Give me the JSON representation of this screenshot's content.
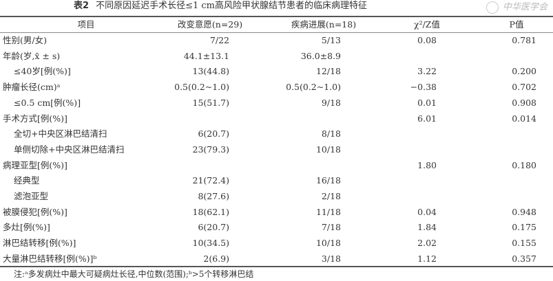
{
  "title": {
    "label": "表2",
    "text": "不同原因延迟手术长径≤1 cm高风险甲状腺结节患者的临床病理特征"
  },
  "headers": [
    "项目",
    "改变意愿(n=29)",
    "疾病进展(n=18)",
    "χ²/Z值",
    "P值"
  ],
  "watermark": "中华医学会",
  "rows": [
    {
      "label": "性别(男/女)",
      "sub": false,
      "v": [
        "7/22",
        "5/13",
        "0.08",
        "0.781"
      ]
    },
    {
      "label": "年龄(岁,x̄ ± s)",
      "sub": false,
      "v": [
        "44.1±13.1",
        "36.0±8.9",
        "",
        ""
      ]
    },
    {
      "label": "≤40岁[例(%)]",
      "sub": true,
      "v": [
        "13(44.8)",
        "12/18",
        "3.22",
        "0.200"
      ]
    },
    {
      "label": "肿瘤长径(cm)ᵃ",
      "sub": false,
      "v": [
        "0.5(0.2~1.0)",
        "0.5(0.2~1.0)",
        "−0.38",
        "0.702"
      ]
    },
    {
      "label": "≤0.5 cm[例(%)]",
      "sub": true,
      "v": [
        "15(51.7)",
        "9/18",
        "0.01",
        "0.908"
      ]
    },
    {
      "label": "手术方式[例(%)]",
      "sub": false,
      "v": [
        "",
        "",
        "6.01",
        "0.014"
      ]
    },
    {
      "label": "全切+中央区淋巴结清扫",
      "sub": true,
      "v": [
        "6(20.7)",
        "8/18",
        "",
        ""
      ]
    },
    {
      "label": "单侧切除+中央区淋巴结清扫",
      "sub": true,
      "v": [
        "23(79.3)",
        "10/18",
        "",
        ""
      ]
    },
    {
      "label": "病理亚型[例(%)]",
      "sub": false,
      "v": [
        "",
        "",
        "1.80",
        "0.180"
      ]
    },
    {
      "label": "经典型",
      "sub": true,
      "v": [
        "21(72.4)",
        "16/18",
        "",
        ""
      ]
    },
    {
      "label": "滤泡亚型",
      "sub": true,
      "v": [
        "8(27.6)",
        "2/18",
        "",
        ""
      ]
    },
    {
      "label": "被膜侵犯[例(%)]",
      "sub": false,
      "v": [
        "18(62.1)",
        "11/18",
        "0.04",
        "0.948"
      ]
    },
    {
      "label": "多灶[例(%)]",
      "sub": false,
      "v": [
        "6(20.7)",
        "7/18",
        "1.84",
        "0.175"
      ]
    },
    {
      "label": "淋巴结转移[例(%)]",
      "sub": false,
      "v": [
        "10(34.5)",
        "10/18",
        "2.02",
        "0.155"
      ]
    },
    {
      "label": "大量淋巴结转移[例(%)]ᵇ",
      "sub": false,
      "v": [
        "2(6.9)",
        "3/18",
        "1.12",
        "0.357"
      ]
    }
  ],
  "note": "注:ᵃ多发病灶中最大可疑病灶长径,中位数(范围);ᵇ>5个转移淋巴结"
}
